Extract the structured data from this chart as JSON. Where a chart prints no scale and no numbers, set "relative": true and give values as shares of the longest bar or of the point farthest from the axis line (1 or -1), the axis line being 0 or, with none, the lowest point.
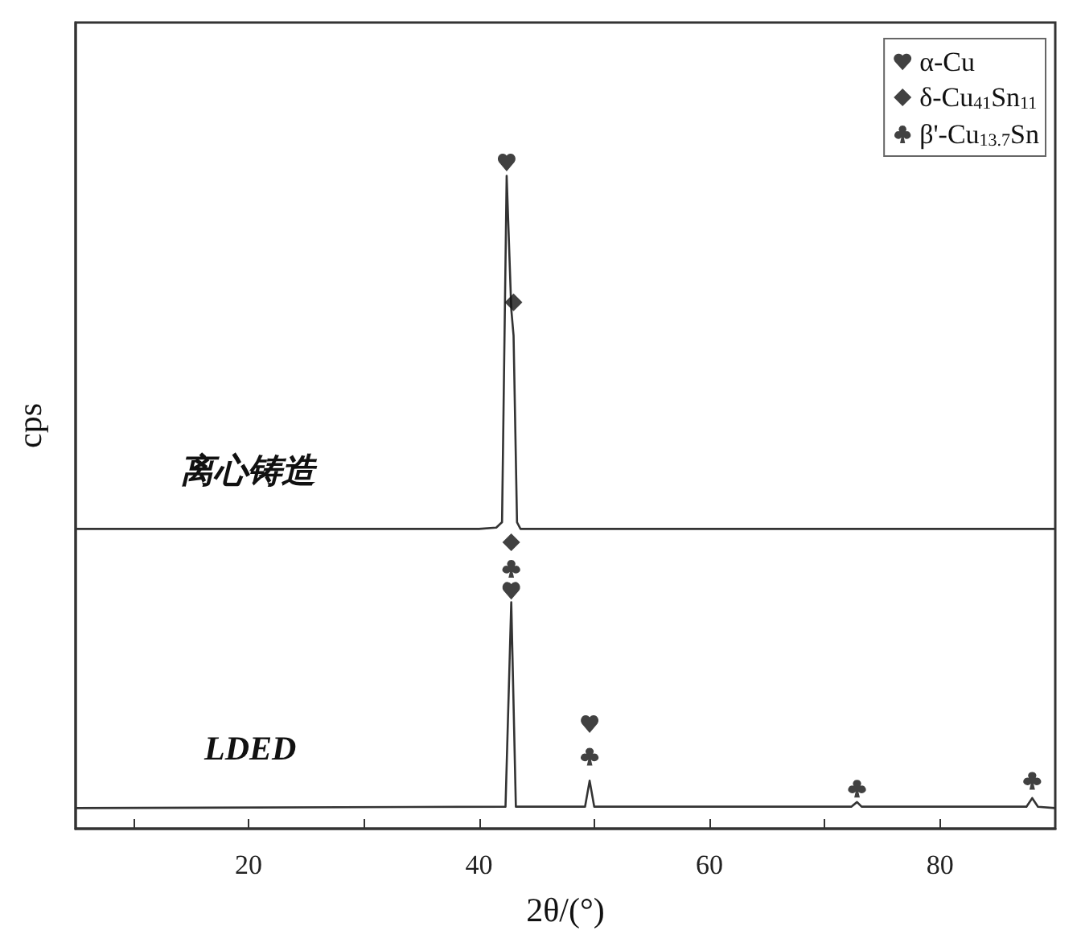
{
  "chart_data": {
    "type": "line",
    "relative": true,
    "xlabel": "2θ/(°)",
    "ylabel": "cps",
    "xlim": [
      5,
      90
    ],
    "xticks": [
      {
        "value": 10,
        "label": null
      },
      20,
      {
        "value": 30,
        "label": null
      },
      40,
      {
        "value": 50,
        "label": null
      },
      60,
      {
        "value": 70,
        "label": null
      },
      80
    ],
    "grid": false,
    "legend": "top right",
    "line_style": "solid",
    "annotations": [
      "离心铸造",
      "LDED"
    ],
    "series": [
      {
        "color": "#333333",
        "marker": "none",
        "x": [
          5,
          40,
          41.5,
          42.0,
          42.4,
          42.8,
          43.0,
          43.3,
          43.6,
          90
        ],
        "values": [
          0.45,
          0.45,
          0.452,
          0.46,
          0.98,
          0.78,
          0.74,
          0.46,
          0.45,
          0.45
        ]
      },
      {
        "color": "#333333",
        "marker": "none",
        "x": [
          5,
          42.3,
          42.8,
          43.2,
          49.2,
          49.6,
          50.0,
          72.3,
          72.8,
          73.2,
          87.5,
          88.0,
          88.5,
          90
        ],
        "values": [
          0.031,
          0.033,
          0.34,
          0.033,
          0.033,
          0.072,
          0.033,
          0.033,
          0.04,
          0.033,
          0.033,
          0.046,
          0.033,
          0.031
        ]
      },
      {
        "type": "scatter",
        "name": "α-Cu",
        "color": "#111111",
        "x": [
          42.4,
          42.8,
          49.6
        ],
        "values": [
          1.0,
          0.357,
          0.157
        ]
      },
      {
        "type": "scatter",
        "name": "δ-Cu$_{41}$Sn$_{11}$",
        "color": "#111111",
        "x": [
          43.0,
          42.8
        ],
        "values": [
          0.79,
          0.43
        ]
      },
      {
        "type": "scatter",
        "name": "β'-Cu$_{13.7}$Sn",
        "color": "#111111",
        "x": [
          42.8,
          49.6,
          72.8,
          88.0
        ],
        "values": [
          0.39,
          0.108,
          0.06,
          0.072
        ]
      }
    ]
  }
}
